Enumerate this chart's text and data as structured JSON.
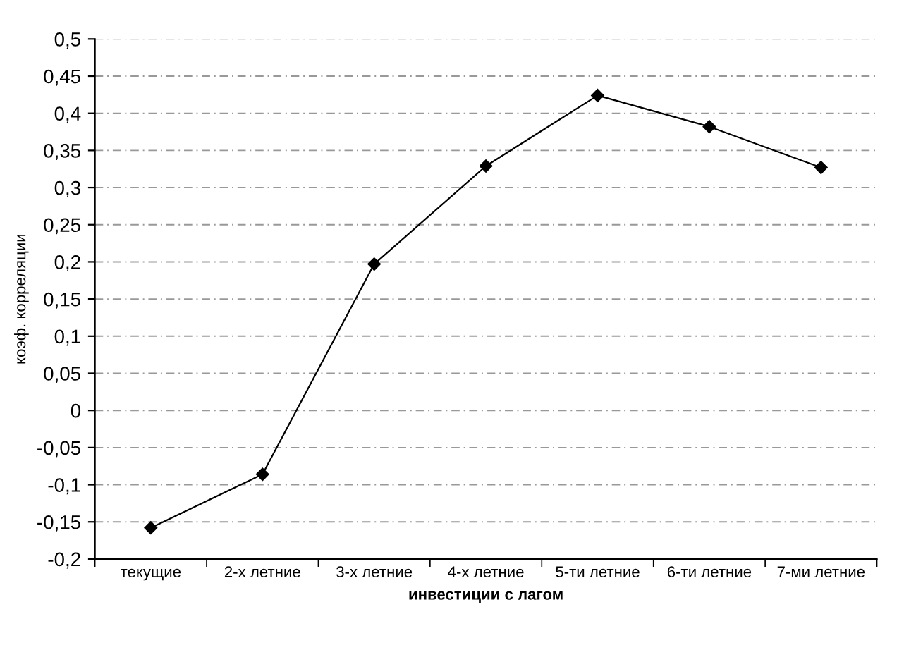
{
  "chart_data": {
    "type": "line",
    "xlabel": "инвестиции с лагом",
    "ylabel": "коэф. корреляции",
    "categories": [
      "текущие",
      "2-х летние",
      "3-х летние",
      "4-х летние",
      "5-ти летние",
      "6-ти летние",
      "7-ми летние"
    ],
    "series": [
      {
        "color": "#000000",
        "values": [
          -0.158,
          -0.086,
          0.197,
          0.329,
          0.424,
          0.382,
          0.327
        ]
      }
    ],
    "ylim": [
      -0.2,
      0.5
    ],
    "yticks": [
      {
        "value": -0.2,
        "label": "-0,2"
      },
      {
        "value": -0.15,
        "label": "-0,15"
      },
      {
        "value": -0.1,
        "label": "-0,1"
      },
      {
        "value": -0.05,
        "label": "-0,05"
      },
      {
        "value": 0,
        "label": "0"
      },
      {
        "value": 0.05,
        "label": "0,05"
      },
      {
        "value": 0.1,
        "label": "0,1"
      },
      {
        "value": 0.15,
        "label": "0,15"
      },
      {
        "value": 0.2,
        "label": "0,2"
      },
      {
        "value": 0.25,
        "label": "0,25"
      },
      {
        "value": 0.3,
        "label": "0,3"
      },
      {
        "value": 0.35,
        "label": "0,35"
      },
      {
        "value": 0.4,
        "label": "0,4"
      },
      {
        "value": 0.45,
        "label": "0,45"
      },
      {
        "value": 0.5,
        "label": "0,5"
      }
    ],
    "grid": "y",
    "marker": "diamond",
    "line_style": "solid",
    "legend": false
  }
}
